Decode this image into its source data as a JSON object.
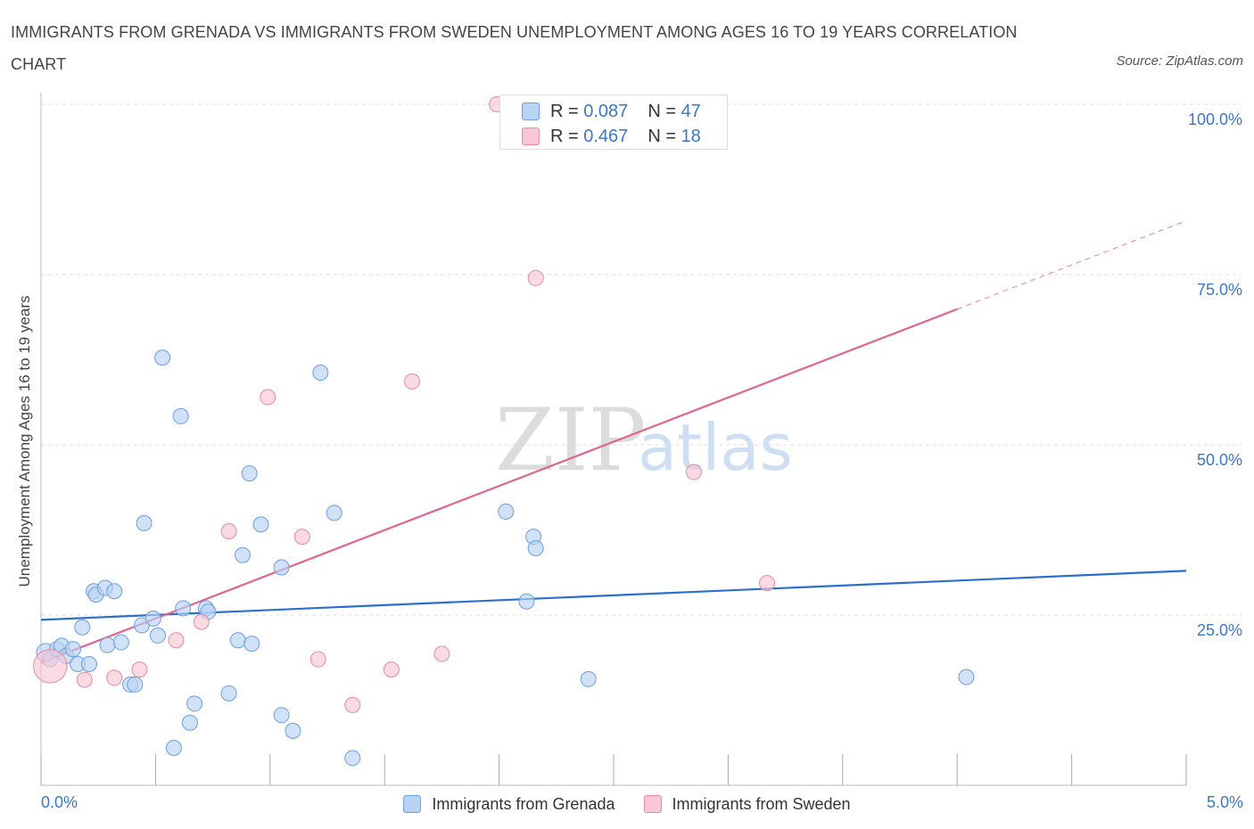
{
  "title": "IMMIGRANTS FROM GRENADA VS IMMIGRANTS FROM SWEDEN UNEMPLOYMENT AMONG AGES 16 TO 19 YEARS CORRELATION CHART",
  "source": "Source: ZipAtlas.com",
  "watermark": {
    "zip": "ZIP",
    "atlas": "atlas"
  },
  "colors": {
    "grenada_fill": "#b9d3f5",
    "grenada_stroke": "#6a9fe0",
    "grenada_line": "#2a6fcc",
    "sweden_fill": "#f8c6d4",
    "sweden_stroke": "#e68aa5",
    "sweden_line": "#e0668f",
    "grid": "#dddddd",
    "tick_label": "#3a78c9"
  },
  "legend_top": [
    {
      "r_label": "R =",
      "r_value": "0.087",
      "n_label": "N =",
      "n_value": "47"
    },
    {
      "r_label": "R =",
      "r_value": "0.467",
      "n_label": "N =",
      "n_value": "18"
    }
  ],
  "chart_data": {
    "type": "scatter",
    "title": "IMMIGRANTS FROM GRENADA VS IMMIGRANTS FROM SWEDEN UNEMPLOYMENT AMONG AGES 16 TO 19 YEARS CORRELATION CHART",
    "xlabel": "",
    "ylabel": "Unemployment Among Ages 16 to 19 years",
    "xlim": [
      0,
      5
    ],
    "ylim": [
      0,
      100
    ],
    "x_tick_labels": [
      "0.0%",
      "5.0%"
    ],
    "y_ticks": [
      25,
      50,
      75,
      100
    ],
    "y_tick_labels": [
      "25.0%",
      "50.0%",
      "75.0%",
      "100.0%"
    ],
    "legend_position": "bottom-center",
    "series": [
      {
        "name": "Immigrants from Grenada",
        "r": 0.087,
        "n": 47,
        "trend": {
          "x": [
            0.0,
            5.0
          ],
          "y": [
            24.3,
            31.5
          ],
          "dashed_from_x": null
        },
        "points": [
          {
            "x": 0.02,
            "y": 19.5,
            "size": 1.2
          },
          {
            "x": 0.04,
            "y": 18.5,
            "size": 1
          },
          {
            "x": 0.07,
            "y": 20.0,
            "size": 1
          },
          {
            "x": 0.09,
            "y": 20.5,
            "size": 1
          },
          {
            "x": 0.11,
            "y": 19.0,
            "size": 1
          },
          {
            "x": 0.14,
            "y": 20.0,
            "size": 1
          },
          {
            "x": 0.16,
            "y": 17.8,
            "size": 1
          },
          {
            "x": 0.18,
            "y": 23.2,
            "size": 1
          },
          {
            "x": 0.21,
            "y": 17.8,
            "size": 1
          },
          {
            "x": 0.23,
            "y": 28.5,
            "size": 1
          },
          {
            "x": 0.24,
            "y": 28.0,
            "size": 1
          },
          {
            "x": 0.28,
            "y": 29.0,
            "size": 1
          },
          {
            "x": 0.29,
            "y": 20.6,
            "size": 1
          },
          {
            "x": 0.32,
            "y": 28.5,
            "size": 1
          },
          {
            "x": 0.35,
            "y": 21.0,
            "size": 1
          },
          {
            "x": 0.39,
            "y": 14.8,
            "size": 1
          },
          {
            "x": 0.41,
            "y": 14.8,
            "size": 1
          },
          {
            "x": 0.44,
            "y": 23.5,
            "size": 1
          },
          {
            "x": 0.45,
            "y": 38.5,
            "size": 1
          },
          {
            "x": 0.49,
            "y": 24.5,
            "size": 1
          },
          {
            "x": 0.51,
            "y": 22.0,
            "size": 1
          },
          {
            "x": 0.53,
            "y": 62.8,
            "size": 1
          },
          {
            "x": 0.58,
            "y": 5.5,
            "size": 1
          },
          {
            "x": 0.61,
            "y": 54.2,
            "size": 1
          },
          {
            "x": 0.62,
            "y": 26.0,
            "size": 1
          },
          {
            "x": 0.65,
            "y": 9.2,
            "size": 1
          },
          {
            "x": 0.67,
            "y": 12.0,
            "size": 1
          },
          {
            "x": 0.72,
            "y": 26.0,
            "size": 1
          },
          {
            "x": 0.73,
            "y": 25.5,
            "size": 1
          },
          {
            "x": 0.82,
            "y": 13.5,
            "size": 1
          },
          {
            "x": 0.86,
            "y": 21.3,
            "size": 1
          },
          {
            "x": 0.88,
            "y": 33.8,
            "size": 1
          },
          {
            "x": 0.91,
            "y": 45.8,
            "size": 1
          },
          {
            "x": 0.92,
            "y": 20.8,
            "size": 1
          },
          {
            "x": 0.96,
            "y": 38.3,
            "size": 1
          },
          {
            "x": 1.05,
            "y": 10.3,
            "size": 1
          },
          {
            "x": 1.05,
            "y": 32.0,
            "size": 1
          },
          {
            "x": 1.1,
            "y": 8.0,
            "size": 1
          },
          {
            "x": 1.22,
            "y": 60.6,
            "size": 1
          },
          {
            "x": 1.28,
            "y": 40.0,
            "size": 1
          },
          {
            "x": 1.36,
            "y": 4.0,
            "size": 1
          },
          {
            "x": 2.03,
            "y": 40.2,
            "size": 1
          },
          {
            "x": 2.12,
            "y": 27.0,
            "size": 1
          },
          {
            "x": 2.15,
            "y": 36.5,
            "size": 1
          },
          {
            "x": 2.16,
            "y": 34.8,
            "size": 1
          },
          {
            "x": 2.39,
            "y": 15.6,
            "size": 1
          },
          {
            "x": 4.04,
            "y": 15.9,
            "size": 1
          }
        ]
      },
      {
        "name": "Immigrants from Sweden",
        "r": 0.467,
        "n": 18,
        "trend": {
          "x": [
            0.0,
            5.0
          ],
          "y": [
            18.0,
            82.9
          ],
          "dashed_from_x": 4.0
        },
        "points": [
          {
            "x": 0.04,
            "y": 17.5,
            "size": 2.2
          },
          {
            "x": 0.19,
            "y": 15.5,
            "size": 1
          },
          {
            "x": 0.32,
            "y": 15.8,
            "size": 1
          },
          {
            "x": 0.43,
            "y": 17.0,
            "size": 1
          },
          {
            "x": 0.59,
            "y": 21.3,
            "size": 1
          },
          {
            "x": 0.7,
            "y": 24.0,
            "size": 1
          },
          {
            "x": 0.82,
            "y": 37.3,
            "size": 1
          },
          {
            "x": 0.99,
            "y": 57.0,
            "size": 1
          },
          {
            "x": 1.14,
            "y": 36.5,
            "size": 1
          },
          {
            "x": 1.21,
            "y": 18.5,
            "size": 1
          },
          {
            "x": 1.36,
            "y": 11.8,
            "size": 1
          },
          {
            "x": 1.53,
            "y": 17.0,
            "size": 1
          },
          {
            "x": 1.62,
            "y": 59.3,
            "size": 1
          },
          {
            "x": 1.75,
            "y": 19.3,
            "size": 1
          },
          {
            "x": 1.99,
            "y": 100.0,
            "size": 1
          },
          {
            "x": 2.16,
            "y": 74.5,
            "size": 1
          },
          {
            "x": 2.85,
            "y": 46.0,
            "size": 1
          },
          {
            "x": 3.17,
            "y": 29.7,
            "size": 1
          }
        ]
      }
    ]
  }
}
